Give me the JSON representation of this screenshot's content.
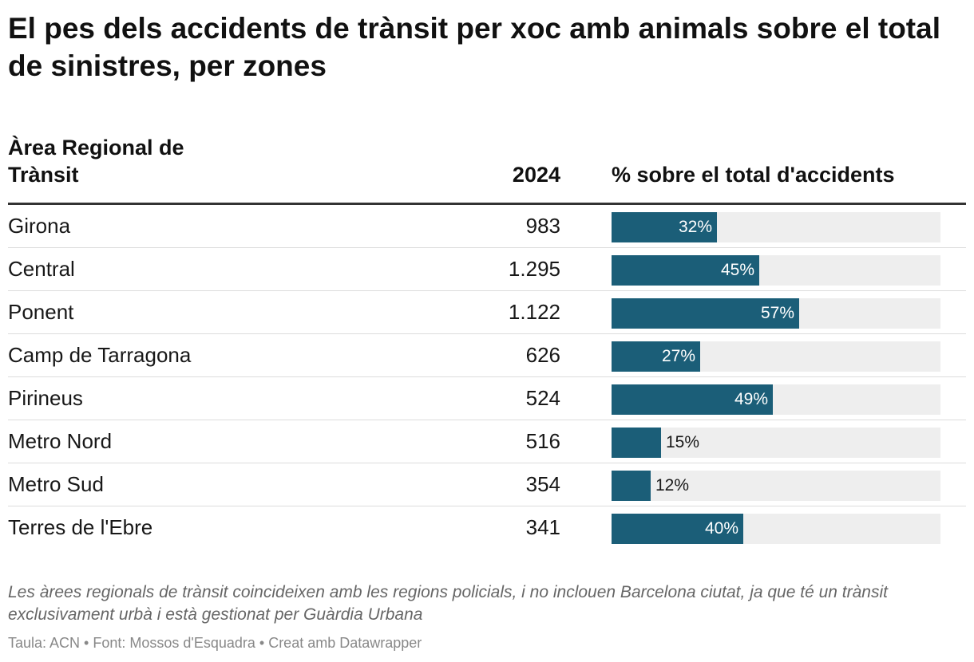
{
  "header": {
    "title": "El pes dels accidents de trànsit per xoc amb animals sobre el total de sinistres, per zones"
  },
  "table": {
    "col_region": "Àrea Regional de Trànsit",
    "col_year": "2024",
    "col_pct": "% sobre el total d'accidents"
  },
  "chart_data": {
    "type": "table",
    "title": "El pes dels accidents de trànsit per xoc amb animals sobre el total de sinistres, per zones",
    "columns": [
      "Àrea Regional de Trànsit",
      "2024",
      "% sobre el total d'accidents"
    ],
    "xlim": [
      0,
      100
    ],
    "rows": [
      {
        "region": "Girona",
        "value": "983",
        "pct": 32,
        "pct_label": "32%"
      },
      {
        "region": "Central",
        "value": "1.295",
        "pct": 45,
        "pct_label": "45%"
      },
      {
        "region": "Ponent",
        "value": "1.122",
        "pct": 57,
        "pct_label": "57%"
      },
      {
        "region": "Camp de Tarragona",
        "value": "626",
        "pct": 27,
        "pct_label": "27%"
      },
      {
        "region": "Pirineus",
        "value": "524",
        "pct": 49,
        "pct_label": "49%"
      },
      {
        "region": "Metro Nord",
        "value": "516",
        "pct": 15,
        "pct_label": "15%"
      },
      {
        "region": "Metro Sud",
        "value": "354",
        "pct": 12,
        "pct_label": "12%"
      },
      {
        "region": "Terres de l'Ebre",
        "value": "341",
        "pct": 40,
        "pct_label": "40%"
      }
    ]
  },
  "notes": {
    "text": "Les àrees regionals de trànsit coincideixen amb les regions policials, i no inclouen Barcelona ciutat, ja que té un trànsit exclusivament urbà i està gestionat per Guàrdia Urbana"
  },
  "footer": {
    "text": "Taula: ACN • Font: Mossos d'Esquadra • Creat amb Datawrapper"
  },
  "colors": {
    "bar": "#1b5e78",
    "track": "#eeeeee"
  }
}
